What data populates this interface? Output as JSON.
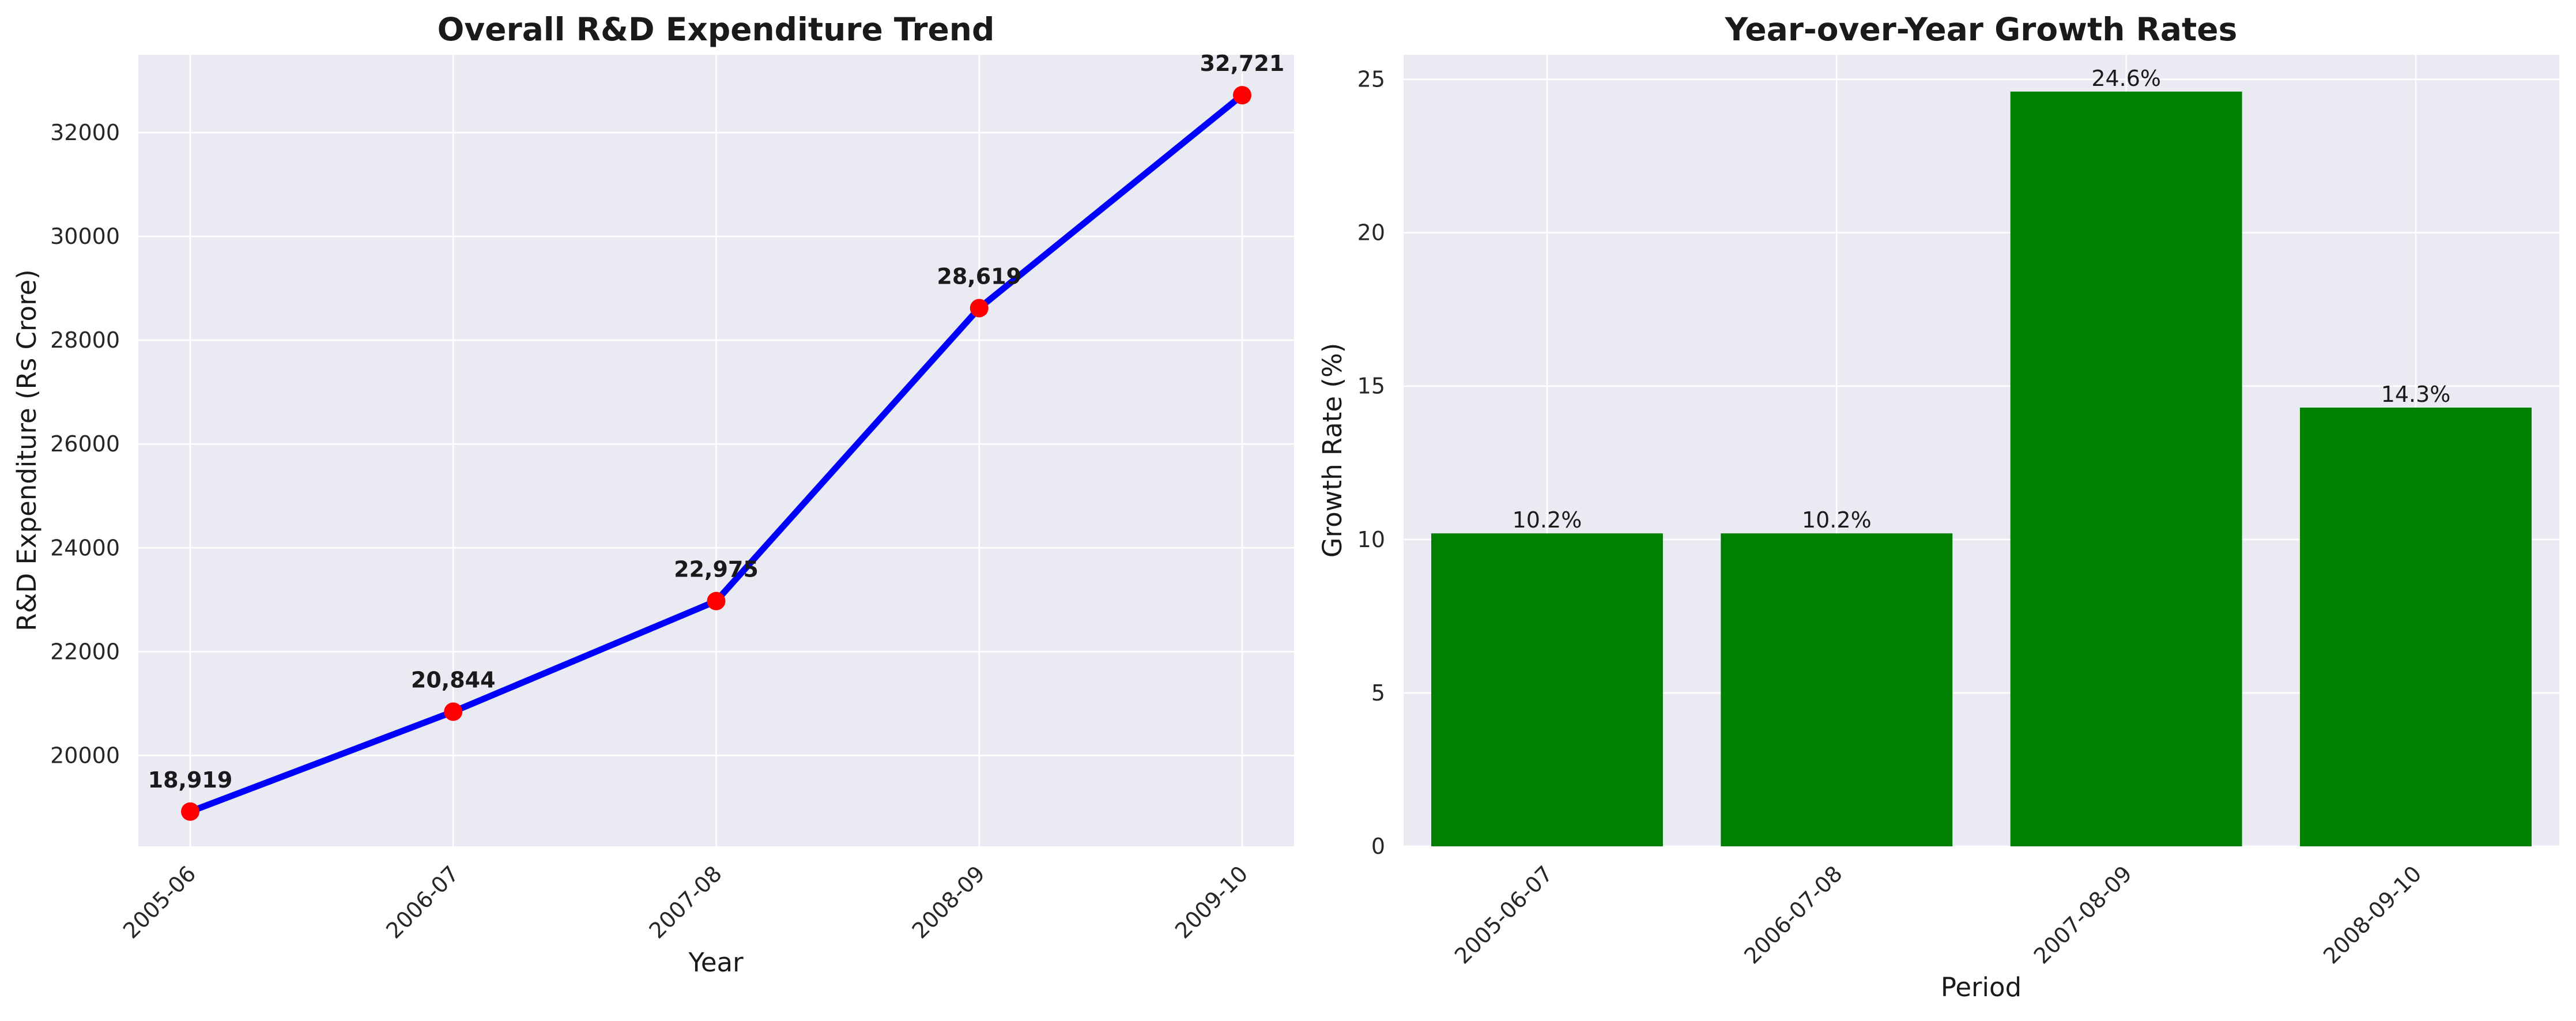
{
  "chart_data": [
    {
      "type": "line",
      "title": "Overall R&D Expenditure Trend",
      "xlabel": "Year",
      "ylabel": "R&D Expenditure (Rs Crore)",
      "categories": [
        "2005-06",
        "2006-07",
        "2007-08",
        "2008-09",
        "2009-10"
      ],
      "values": [
        18919,
        20844,
        22975,
        28619,
        32721
      ],
      "data_labels": [
        "18,919",
        "20,844",
        "22,975",
        "28,619",
        "32,721"
      ],
      "ylim": [
        18250,
        33500
      ],
      "yticks": [
        20000,
        22000,
        24000,
        26000,
        28000,
        30000,
        32000
      ],
      "grid": true,
      "line_color": "#0000ff",
      "marker_color": "#ff0000",
      "legend": "none"
    },
    {
      "type": "bar",
      "title": "Year-over-Year Growth Rates",
      "xlabel": "Period",
      "ylabel": "Growth Rate (%)",
      "categories": [
        "2005-06-07",
        "2006-07-08",
        "2007-08-09",
        "2008-09-10"
      ],
      "values": [
        10.2,
        10.2,
        24.6,
        14.3
      ],
      "data_labels": [
        "10.2%",
        "10.2%",
        "24.6%",
        "14.3%"
      ],
      "ylim": [
        0,
        25.8
      ],
      "yticks": [
        0,
        5,
        10,
        15,
        20,
        25
      ],
      "grid": true,
      "bar_color": "#008000",
      "legend": "none"
    }
  ]
}
